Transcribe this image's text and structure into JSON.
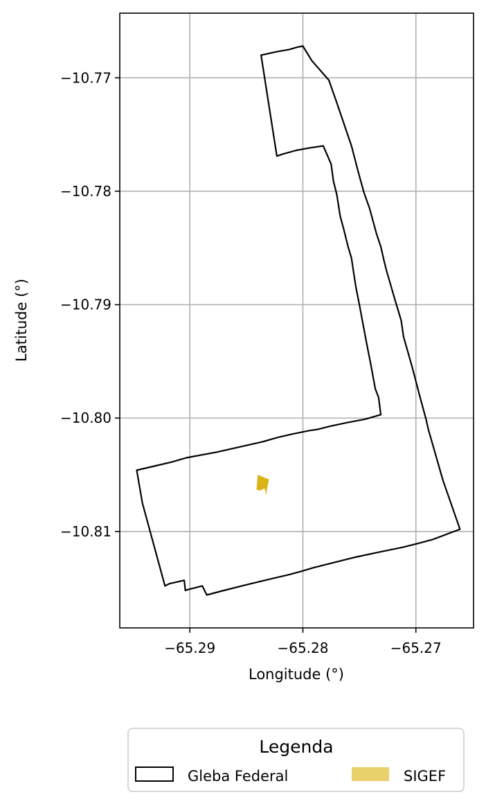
{
  "chart_data": {
    "type": "map",
    "xlabel": "Longitude (°)",
    "ylabel": "Latitude (°)",
    "xlim": [
      -65.2962,
      -65.2649
    ],
    "ylim": [
      -10.8185,
      -10.7643
    ],
    "xticks": [
      -65.29,
      -65.28,
      -65.27
    ],
    "yticks": [
      -10.77,
      -10.78,
      -10.79,
      -10.8,
      -10.81
    ],
    "xtick_labels": [
      "−65.29",
      "−65.28",
      "−65.27"
    ],
    "ytick_labels": [
      "−10.77",
      "−10.78",
      "−10.79",
      "−10.80",
      "−10.81"
    ],
    "grid": true,
    "legend": {
      "title": "Legenda",
      "placement": "bottom-center",
      "entries": [
        {
          "name": "Gleba Federal",
          "style": "outline",
          "color": "#000000"
        },
        {
          "name": "SIGEF",
          "style": "fill",
          "color": "#e8d06a"
        }
      ]
    },
    "layers": [
      {
        "name": "Gleba Federal",
        "stroke": "#000000",
        "fill": "none",
        "coordinates": [
          [
            -65.2837,
            -10.768
          ],
          [
            -65.2823,
            -10.7677
          ],
          [
            -65.2812,
            -10.7675
          ],
          [
            -65.2805,
            -10.7673
          ],
          [
            -65.28,
            -10.7672
          ],
          [
            -65.2792,
            -10.7685
          ],
          [
            -65.2777,
            -10.7702
          ],
          [
            -65.277,
            -10.7722
          ],
          [
            -65.2757,
            -10.776
          ],
          [
            -65.2751,
            -10.7783
          ],
          [
            -65.2746,
            -10.7801
          ],
          [
            -65.2741,
            -10.7815
          ],
          [
            -65.2735,
            -10.7837
          ],
          [
            -65.2731,
            -10.7849
          ],
          [
            -65.2728,
            -10.7862
          ],
          [
            -65.2726,
            -10.787
          ],
          [
            -65.2719,
            -10.7894
          ],
          [
            -65.2713,
            -10.7914
          ],
          [
            -65.2711,
            -10.7928
          ],
          [
            -65.2703,
            -10.7956
          ],
          [
            -65.2697,
            -10.7979
          ],
          [
            -65.2691,
            -10.8001
          ],
          [
            -65.2689,
            -10.801
          ],
          [
            -65.2676,
            -10.8055
          ],
          [
            -65.2661,
            -10.8098
          ],
          [
            -65.2685,
            -10.8107
          ],
          [
            -65.27,
            -10.8111
          ],
          [
            -65.2712,
            -10.8114
          ],
          [
            -65.2732,
            -10.8118
          ],
          [
            -65.2755,
            -10.8123
          ],
          [
            -65.2775,
            -10.8128
          ],
          [
            -65.2791,
            -10.8132
          ],
          [
            -65.2801,
            -10.8135
          ],
          [
            -65.2812,
            -10.8138
          ],
          [
            -65.2829,
            -10.8142
          ],
          [
            -65.285,
            -10.8147
          ],
          [
            -65.287,
            -10.8152
          ],
          [
            -65.2885,
            -10.8156
          ],
          [
            -65.2889,
            -10.8148
          ],
          [
            -65.2901,
            -10.8151
          ],
          [
            -65.2904,
            -10.8152
          ],
          [
            -65.2905,
            -10.8143
          ],
          [
            -65.2918,
            -10.8146
          ],
          [
            -65.2922,
            -10.8148
          ],
          [
            -65.2942,
            -10.8075
          ],
          [
            -65.2947,
            -10.8046
          ],
          [
            -65.293,
            -10.8042
          ],
          [
            -65.2917,
            -10.8039
          ],
          [
            -65.2903,
            -10.8035
          ],
          [
            -65.2876,
            -10.803
          ],
          [
            -65.2854,
            -10.8025
          ],
          [
            -65.2836,
            -10.8021
          ],
          [
            -65.2822,
            -10.8017
          ],
          [
            -65.2809,
            -10.8014
          ],
          [
            -65.2794,
            -10.8011
          ],
          [
            -65.2787,
            -10.801
          ],
          [
            -65.2775,
            -10.8007
          ],
          [
            -65.2761,
            -10.8004
          ],
          [
            -65.2745,
            -10.8001
          ],
          [
            -65.2731,
            -10.7997
          ],
          [
            -65.2733,
            -10.7982
          ],
          [
            -65.2736,
            -10.7974
          ],
          [
            -65.274,
            -10.7952
          ],
          [
            -65.2743,
            -10.7937
          ],
          [
            -65.2747,
            -10.7916
          ],
          [
            -65.275,
            -10.79
          ],
          [
            -65.2753,
            -10.7885
          ],
          [
            -65.2755,
            -10.7872
          ],
          [
            -65.2757,
            -10.7859
          ],
          [
            -65.276,
            -10.7849
          ],
          [
            -65.2764,
            -10.7833
          ],
          [
            -65.2767,
            -10.7822
          ],
          [
            -65.277,
            -10.7803
          ],
          [
            -65.2773,
            -10.7791
          ],
          [
            -65.2775,
            -10.7776
          ],
          [
            -65.2782,
            -10.776
          ],
          [
            -65.2795,
            -10.7762
          ],
          [
            -65.2806,
            -10.7764
          ],
          [
            -65.2817,
            -10.7767
          ],
          [
            -65.2823,
            -10.7769
          ],
          [
            -65.2837,
            -10.768
          ]
        ]
      },
      {
        "name": "SIGEF",
        "fill": "#dab417",
        "coordinates": [
          [
            -65.284,
            -10.805
          ],
          [
            -65.283,
            -10.8054
          ],
          [
            -65.2832,
            -10.8064
          ],
          [
            -65.2832,
            -10.8068
          ],
          [
            -65.2834,
            -10.8062
          ],
          [
            -65.2838,
            -10.8064
          ],
          [
            -65.2841,
            -10.8063
          ],
          [
            -65.284,
            -10.805
          ]
        ]
      }
    ]
  }
}
